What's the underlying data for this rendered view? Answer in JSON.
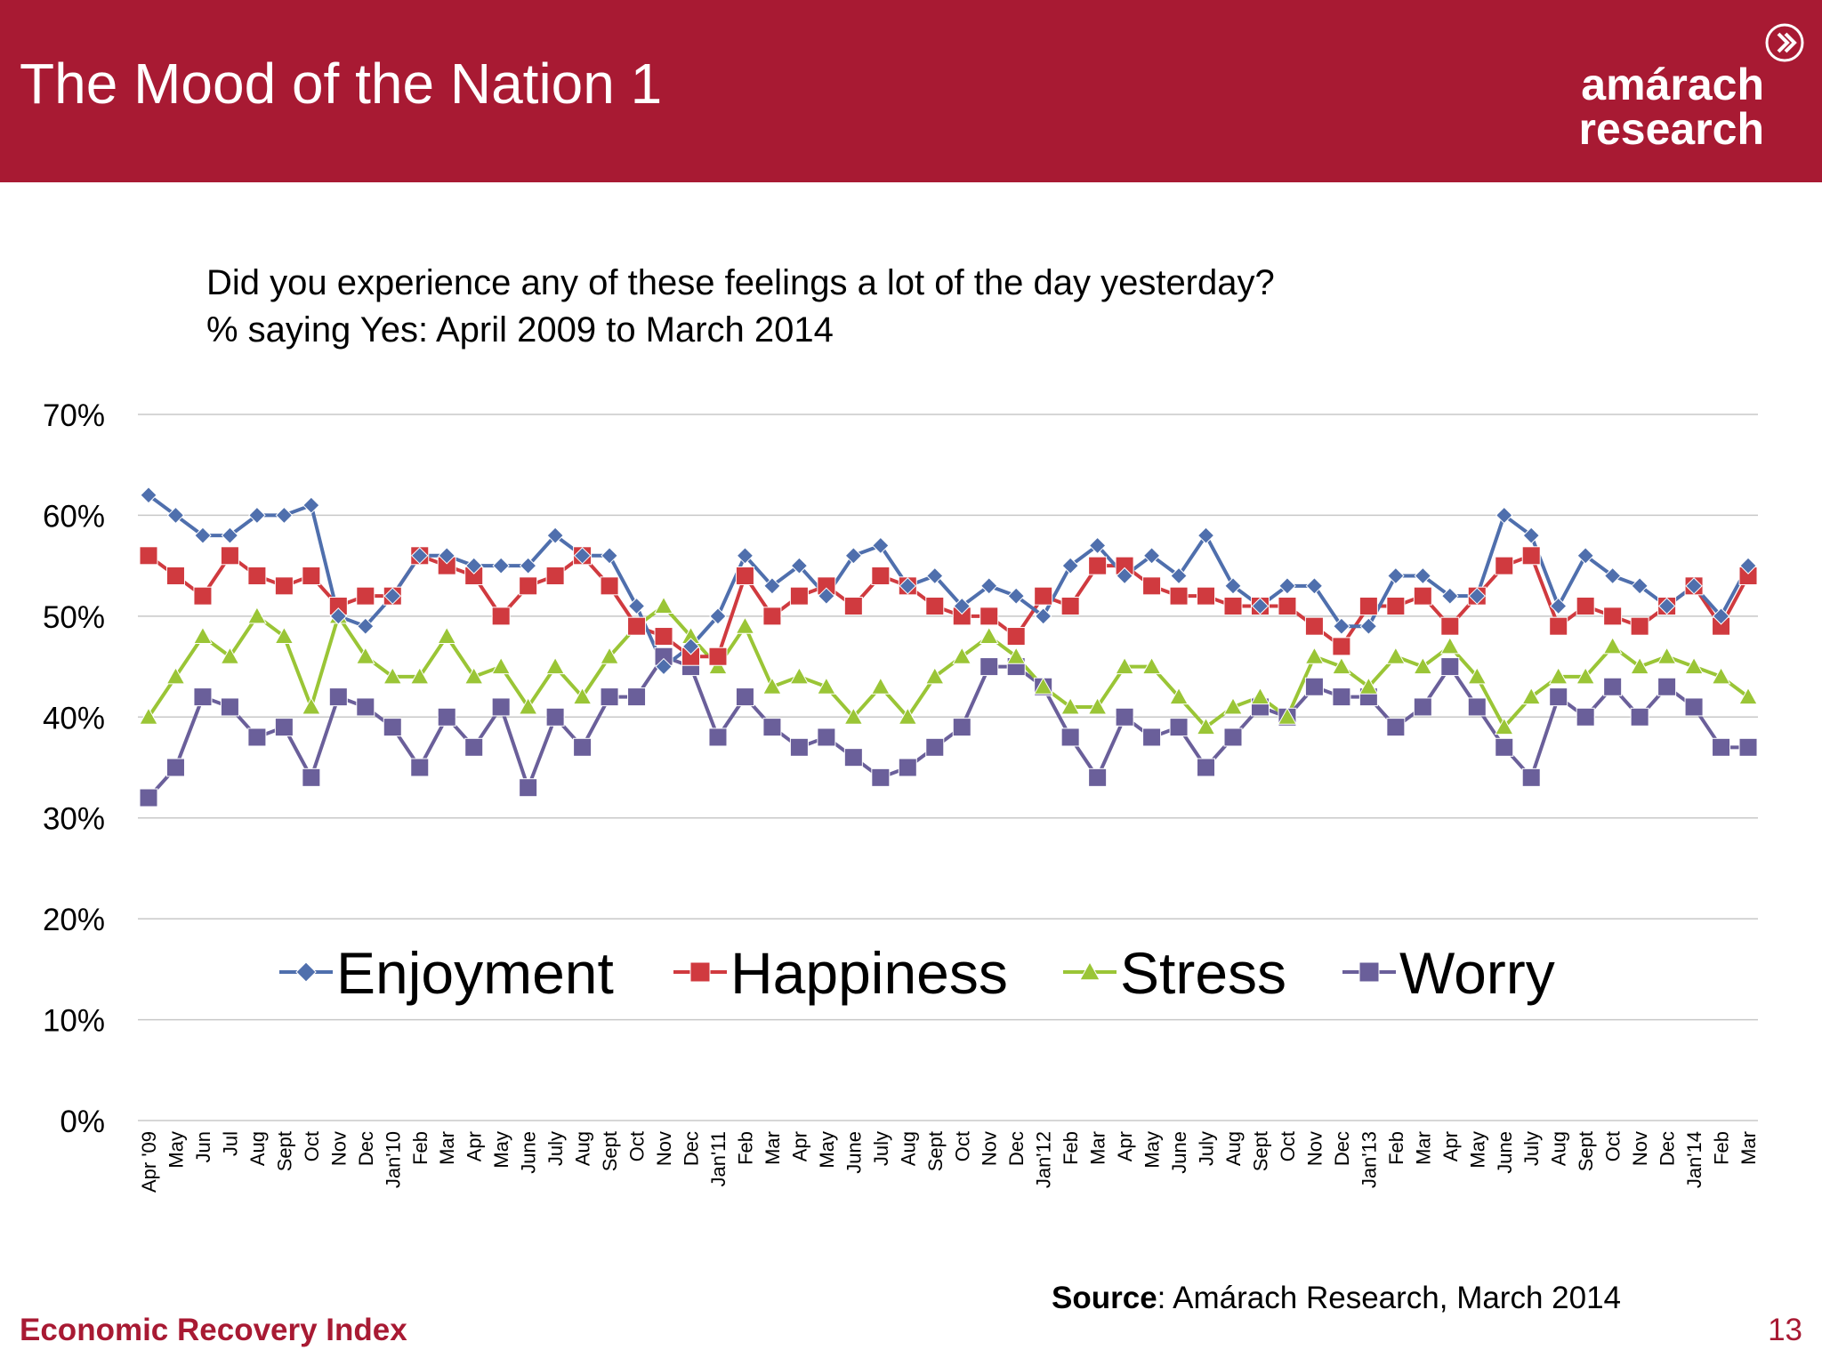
{
  "header": {
    "title": "The Mood of the Nation 1",
    "logo_line1": "amárach",
    "logo_line2": "research"
  },
  "subtitle": {
    "line1": "Did you experience any of these feelings a lot of the day yesterday?",
    "line2": "% saying Yes: April 2009 to March 2014"
  },
  "chart_data": {
    "type": "line",
    "categories": [
      "Apr '09",
      "May",
      "Jun",
      "Jul",
      "Aug",
      "Sept",
      "Oct",
      "Nov",
      "Dec",
      "Jan'10",
      "Feb",
      "Mar",
      "Apr",
      "May",
      "June",
      "July",
      "Aug",
      "Sept",
      "Oct",
      "Nov",
      "Dec",
      "Jan'11",
      "Feb",
      "Mar",
      "Apr",
      "May",
      "June",
      "July",
      "Aug",
      "Sept",
      "Oct",
      "Nov",
      "Dec",
      "Jan'12",
      "Feb",
      "Mar",
      "Apr",
      "May",
      "June",
      "July",
      "Aug",
      "Sept",
      "Oct",
      "Nov",
      "Dec",
      "Jan'13",
      "Feb",
      "Mar",
      "Apr",
      "May",
      "June",
      "July",
      "Aug",
      "Sept",
      "Oct",
      "Nov",
      "Dec",
      "Jan'14",
      "Feb",
      "Mar"
    ],
    "y_ticks": [
      "0%",
      "10%",
      "20%",
      "30%",
      "40%",
      "50%",
      "60%",
      "70%"
    ],
    "ylim": [
      0,
      70
    ],
    "grid": true,
    "legend_position": "inside-lower",
    "series": [
      {
        "name": "Enjoyment",
        "color": "#4f6fad",
        "marker": "diamond",
        "values": [
          62,
          60,
          58,
          58,
          60,
          60,
          61,
          50,
          49,
          52,
          56,
          56,
          55,
          55,
          55,
          58,
          56,
          56,
          51,
          45,
          47,
          50,
          56,
          53,
          55,
          52,
          56,
          57,
          53,
          54,
          51,
          53,
          52,
          50,
          55,
          57,
          54,
          56,
          54,
          58,
          53,
          51,
          53,
          53,
          49,
          49,
          54,
          54,
          52,
          52,
          60,
          58,
          51,
          56,
          54,
          53,
          51,
          53,
          50,
          55
        ]
      },
      {
        "name": "Happiness",
        "color": "#d03a3f",
        "marker": "square",
        "values": [
          56,
          54,
          52,
          56,
          54,
          53,
          54,
          51,
          52,
          52,
          56,
          55,
          54,
          50,
          53,
          54,
          56,
          53,
          49,
          48,
          46,
          46,
          54,
          50,
          52,
          53,
          51,
          54,
          53,
          51,
          50,
          50,
          48,
          52,
          51,
          55,
          55,
          53,
          52,
          52,
          51,
          51,
          51,
          49,
          47,
          51,
          51,
          52,
          49,
          52,
          55,
          56,
          49,
          51,
          50,
          49,
          51,
          53,
          49,
          54
        ]
      },
      {
        "name": "Stress",
        "color": "#9ac536",
        "marker": "triangle",
        "values": [
          40,
          44,
          48,
          46,
          50,
          48,
          41,
          50,
          46,
          44,
          44,
          48,
          44,
          45,
          41,
          45,
          42,
          46,
          49,
          51,
          48,
          45,
          49,
          43,
          44,
          43,
          40,
          43,
          40,
          44,
          46,
          48,
          46,
          43,
          41,
          41,
          45,
          45,
          42,
          39,
          41,
          42,
          40,
          46,
          45,
          43,
          46,
          45,
          47,
          44,
          39,
          42,
          44,
          44,
          47,
          45,
          46,
          45,
          44,
          42
        ]
      },
      {
        "name": "Worry",
        "color": "#6a5f9a",
        "marker": "square",
        "values": [
          32,
          35,
          42,
          41,
          38,
          39,
          34,
          42,
          41,
          39,
          35,
          40,
          37,
          41,
          33,
          40,
          37,
          42,
          42,
          46,
          45,
          38,
          42,
          39,
          37,
          38,
          36,
          34,
          35,
          37,
          39,
          45,
          45,
          43,
          38,
          34,
          40,
          38,
          39,
          35,
          38,
          41,
          40,
          43,
          42,
          42,
          39,
          41,
          45,
          41,
          37,
          34,
          42,
          40,
          43,
          40,
          43,
          41,
          37,
          37
        ]
      }
    ]
  },
  "source": {
    "label": "Source",
    "text": ": Amárach Research, March 2014"
  },
  "footer": {
    "left": "Economic Recovery Index",
    "page": "13"
  }
}
